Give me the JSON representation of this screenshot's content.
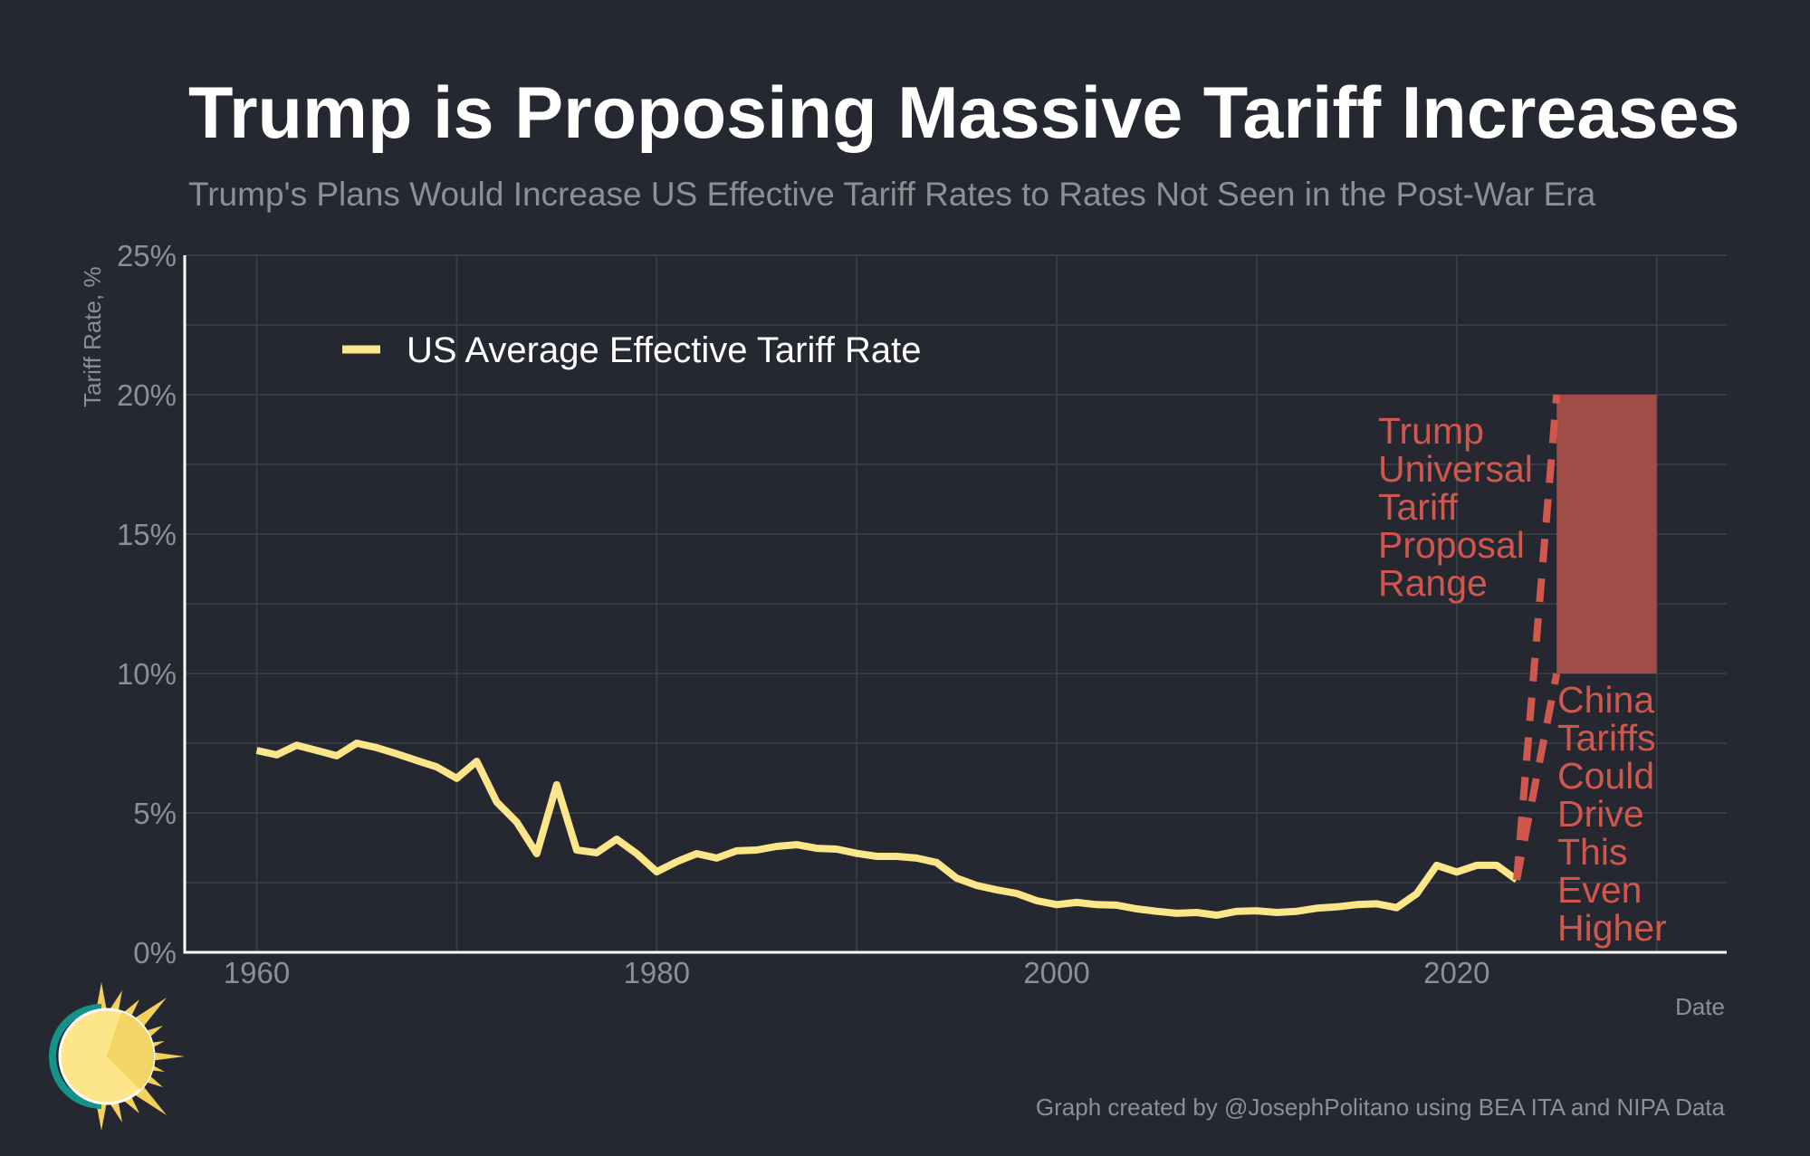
{
  "chart_data": {
    "type": "line",
    "title": "Trump is Proposing Massive Tariff Increases",
    "subtitle": "Trump's Plans Would Increase US Effective Tariff Rates to Rates Not Seen in the Post-War Era",
    "xlabel": "Date",
    "ylabel": "Tariff Rate, %",
    "xlim": [
      1956.4,
      2033.5
    ],
    "ylim": [
      0,
      25
    ],
    "grid": true,
    "legend_position": "top-left",
    "x_ticks": [
      1960,
      1980,
      2000,
      2020
    ],
    "x_tick_labels": [
      "1960",
      "1980",
      "2000",
      "2020"
    ],
    "x_minor_grid": [
      1970,
      1990,
      2010,
      2030
    ],
    "y_ticks": [
      0,
      5,
      10,
      15,
      20,
      25
    ],
    "y_tick_labels": [
      "0%",
      "5%",
      "10%",
      "15%",
      "20%",
      "25%"
    ],
    "y_minor_grid": [
      2.5,
      7.5,
      12.5,
      17.5,
      22.5
    ],
    "colors": {
      "series": "#fde58a",
      "annotation": "#d0574d",
      "range_fill": "#a04d48"
    },
    "series": [
      {
        "name": "US Average Effective Tariff Rate",
        "x": [
          1960,
          1961,
          1962,
          1963,
          1964,
          1965,
          1966,
          1967,
          1968,
          1969,
          1970,
          1971,
          1972,
          1973,
          1974,
          1975,
          1976,
          1977,
          1978,
          1979,
          1980,
          1981,
          1982,
          1983,
          1984,
          1985,
          1986,
          1987,
          1988,
          1989,
          1990,
          1991,
          1992,
          1993,
          1994,
          1995,
          1996,
          1997,
          1998,
          1999,
          2000,
          2001,
          2002,
          2003,
          2004,
          2005,
          2006,
          2007,
          2008,
          2009,
          2010,
          2011,
          2012,
          2013,
          2014,
          2015,
          2016,
          2017,
          2018,
          2019,
          2020,
          2021,
          2022,
          2023
        ],
        "values": [
          7.24,
          7.08,
          7.43,
          7.24,
          7.05,
          7.5,
          7.34,
          7.12,
          6.88,
          6.65,
          6.24,
          6.85,
          5.39,
          4.67,
          3.54,
          6.01,
          3.67,
          3.57,
          4.06,
          3.54,
          2.89,
          3.25,
          3.54,
          3.38,
          3.64,
          3.67,
          3.8,
          3.86,
          3.73,
          3.7,
          3.55,
          3.44,
          3.44,
          3.38,
          3.22,
          2.66,
          2.4,
          2.24,
          2.11,
          1.85,
          1.71,
          1.79,
          1.71,
          1.69,
          1.56,
          1.47,
          1.4,
          1.43,
          1.33,
          1.47,
          1.49,
          1.43,
          1.47,
          1.58,
          1.63,
          1.71,
          1.74,
          1.6,
          2.1,
          3.12,
          2.88,
          3.12,
          3.12,
          2.6
        ]
      }
    ],
    "projection": {
      "type": "dashed-lines",
      "from": {
        "x": 2023,
        "y": 2.6
      },
      "to": [
        {
          "x": 2025,
          "y": 20
        },
        {
          "x": 2025,
          "y": 10
        }
      ]
    },
    "range_box": {
      "x": [
        2025,
        2030
      ],
      "y": [
        10,
        20
      ]
    },
    "annotations": [
      {
        "lines": [
          "Trump",
          "Universal",
          "Tariff",
          "Proposal",
          "Range"
        ]
      },
      {
        "lines": [
          "China",
          "Tariffs",
          "Could",
          "Drive",
          "This",
          "Even",
          "Higher"
        ]
      }
    ]
  },
  "footer": {
    "credit": "Graph created by @JosephPolitano using BEA ITA and NIPA Data"
  },
  "logo": {
    "icon": "sun-logo-icon"
  }
}
